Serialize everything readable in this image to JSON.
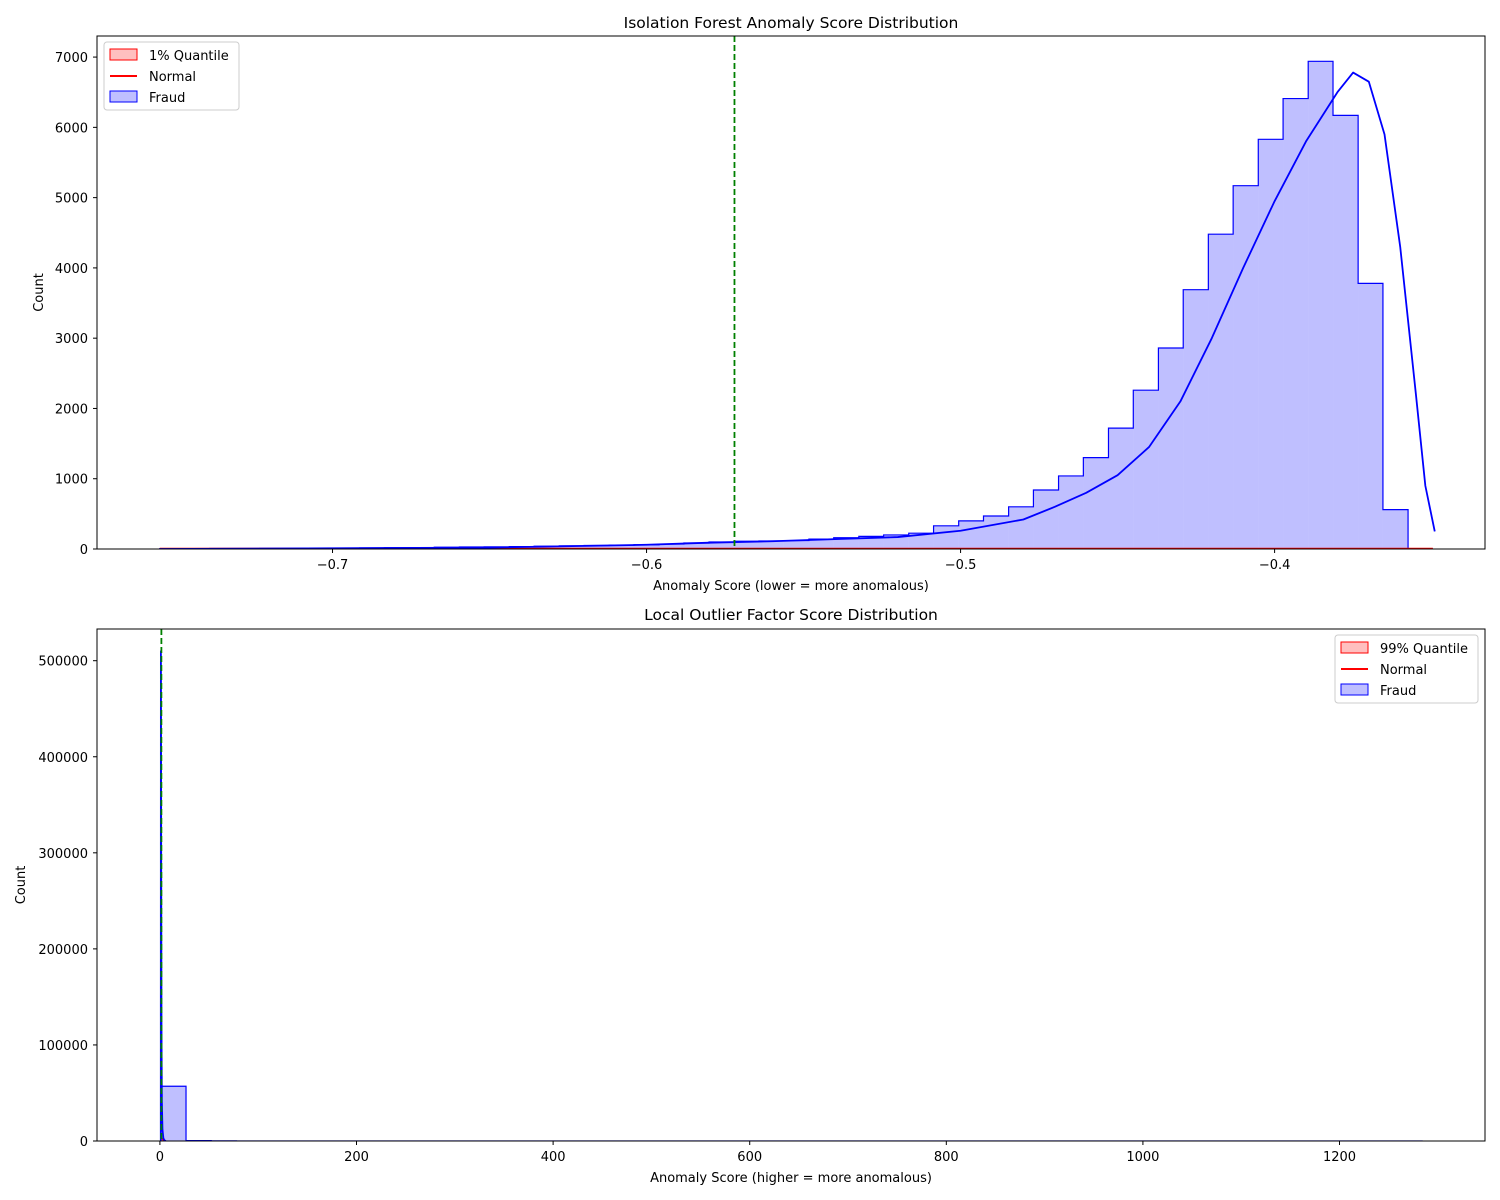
{
  "chart_data": [
    {
      "type": "histogram",
      "title": "Isolation Forest Anomaly Score Distribution",
      "xlabel": "Anomaly Score (lower = more anomalous)",
      "ylabel": "Count",
      "xlim": [
        -0.775,
        -0.333
      ],
      "ylim": [
        0,
        7300
      ],
      "xticks": [
        -0.7,
        -0.6,
        -0.5,
        -0.4
      ],
      "xtick_labels": [
        "−0.7",
        "−0.6",
        "−0.5",
        "−0.4"
      ],
      "yticks": [
        0,
        1000,
        2000,
        3000,
        4000,
        5000,
        6000,
        7000
      ],
      "ytick_labels": [
        "0",
        "1000",
        "2000",
        "3000",
        "4000",
        "5000",
        "6000",
        "7000"
      ],
      "threshold": -0.572,
      "legend": {
        "placement": "top-left",
        "entries": [
          {
            "label": "1% Quantile",
            "kind": "patch",
            "color": "#ff0000"
          },
          {
            "label": "Normal",
            "kind": "line",
            "color": "#ff0000"
          },
          {
            "label": "Fraud",
            "kind": "patch",
            "color": "#0000ff"
          }
        ]
      },
      "bin_edges": [
        -0.755,
        -0.7471,
        -0.7391,
        -0.7312,
        -0.7232,
        -0.7153,
        -0.7073,
        -0.6994,
        -0.6914,
        -0.6835,
        -0.6755,
        -0.6676,
        -0.6596,
        -0.6517,
        -0.6437,
        -0.6358,
        -0.6278,
        -0.6199,
        -0.6119,
        -0.604,
        -0.596,
        -0.5881,
        -0.5801,
        -0.5722,
        -0.5642,
        -0.5563,
        -0.5483,
        -0.5404,
        -0.5324,
        -0.5245,
        -0.5165,
        -0.5086,
        -0.5006,
        -0.4927,
        -0.4847,
        -0.4768,
        -0.4688,
        -0.4609,
        -0.4529,
        -0.445,
        -0.437,
        -0.4291,
        -0.4211,
        -0.4132,
        -0.4052,
        -0.3973,
        -0.3893,
        -0.3814,
        -0.3734,
        -0.3655,
        -0.3575,
        -0.3496
      ],
      "fraud_counts": [
        5,
        5,
        8,
        8,
        10,
        10,
        12,
        12,
        15,
        18,
        20,
        25,
        28,
        30,
        35,
        40,
        45,
        50,
        55,
        60,
        70,
        85,
        100,
        110,
        115,
        120,
        140,
        160,
        180,
        200,
        225,
        330,
        400,
        470,
        600,
        840,
        1040,
        1300,
        1720,
        2260,
        2860,
        3690,
        4480,
        5170,
        5830,
        6410,
        6940,
        6170,
        3780,
        560,
        0
      ],
      "normal_counts": [
        0,
        0,
        0,
        0,
        0,
        0,
        0,
        0,
        0,
        0,
        0,
        0,
        0,
        0,
        0,
        0,
        0,
        0,
        0,
        0,
        0,
        0,
        0,
        0,
        0,
        0,
        0,
        0,
        0,
        0,
        0,
        0,
        0,
        0,
        0,
        0,
        0,
        0,
        0,
        0,
        0,
        0,
        0,
        0,
        0,
        0,
        0,
        0,
        0,
        0,
        0
      ],
      "kde_x": [
        -0.755,
        -0.7,
        -0.65,
        -0.6,
        -0.58,
        -0.56,
        -0.54,
        -0.52,
        -0.5,
        -0.48,
        -0.47,
        -0.46,
        -0.45,
        -0.44,
        -0.43,
        -0.42,
        -0.41,
        -0.4,
        -0.39,
        -0.38,
        -0.375,
        -0.37,
        -0.365,
        -0.36,
        -0.355,
        -0.352,
        -0.349
      ],
      "kde_y": [
        0,
        10,
        20,
        60,
        90,
        110,
        140,
        170,
        260,
        420,
        600,
        800,
        1050,
        1450,
        2100,
        3000,
        4000,
        4950,
        5800,
        6500,
        6780,
        6650,
        5900,
        4300,
        2200,
        900,
        250
      ]
    },
    {
      "type": "histogram",
      "title": "Local Outlier Factor Score Distribution",
      "xlabel": "Anomaly Score (higher = more anomalous)",
      "ylabel": "Count",
      "xlim": [
        -64,
        1348
      ],
      "ylim": [
        0,
        533000
      ],
      "xticks": [
        0,
        200,
        400,
        600,
        800,
        1000,
        1200
      ],
      "xtick_labels": [
        "0",
        "200",
        "400",
        "600",
        "800",
        "1000",
        "1200"
      ],
      "yticks": [
        0,
        100000,
        200000,
        300000,
        400000,
        500000
      ],
      "ytick_labels": [
        "0",
        "100000",
        "200000",
        "300000",
        "400000",
        "500000"
      ],
      "threshold": 1.5,
      "legend": {
        "placement": "top-right",
        "entries": [
          {
            "label": "99% Quantile",
            "kind": "patch",
            "color": "#ff0000"
          },
          {
            "label": "Normal",
            "kind": "line",
            "color": "#ff0000"
          },
          {
            "label": "Fraud",
            "kind": "patch",
            "color": "#0000ff"
          }
        ]
      },
      "bin_range": [
        0.9,
        1284
      ],
      "bins": 50,
      "fraud_counts": [
        57000,
        400,
        150,
        90,
        60,
        40,
        30,
        20,
        15,
        12,
        10,
        8,
        6,
        5,
        4,
        4,
        3,
        3,
        2,
        2,
        2,
        1,
        1,
        1,
        1,
        1,
        1,
        1,
        1,
        1,
        1,
        1,
        1,
        1,
        1,
        1,
        1,
        1,
        1,
        1,
        1,
        1,
        1,
        1,
        1,
        1,
        1,
        1,
        1,
        1
      ],
      "normal_spike_x": [
        0.9,
        1.4,
        2.2,
        3.2,
        4.5
      ],
      "normal_spike_y": [
        0,
        3000,
        2500,
        800,
        0
      ],
      "kde_x": [
        0.9,
        1.0,
        1.1,
        1.3,
        1.6,
        2.0,
        2.6,
        3.5,
        4.5,
        6.0
      ],
      "kde_y": [
        0,
        510000,
        480000,
        300000,
        120000,
        40000,
        12000,
        3000,
        800,
        0
      ]
    }
  ]
}
